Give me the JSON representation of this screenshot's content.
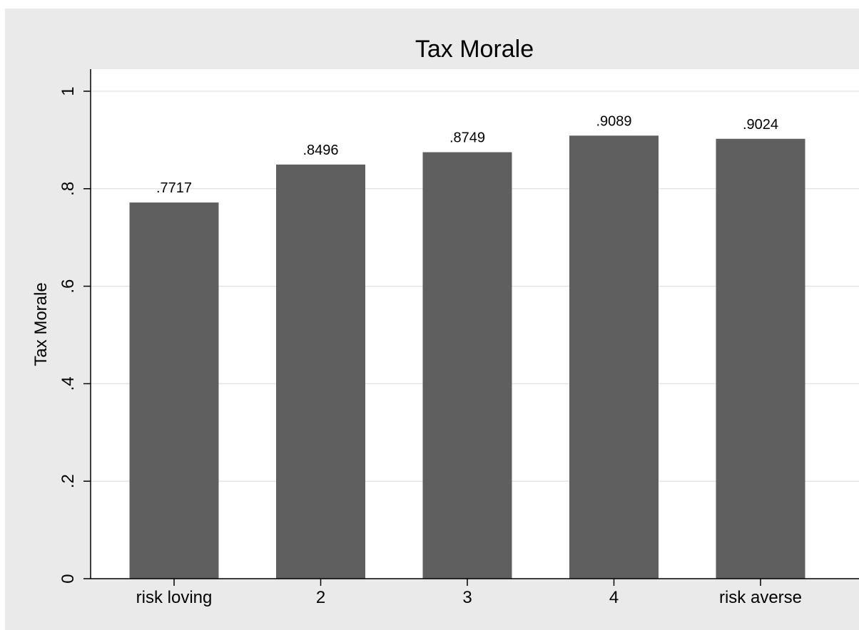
{
  "chart_data": {
    "type": "bar",
    "title": "Tax Morale",
    "xlabel": "",
    "ylabel": "Tax Morale",
    "categories": [
      "risk loving",
      "2",
      "3",
      "4",
      "risk averse"
    ],
    "values": [
      0.7717,
      0.8496,
      0.8749,
      0.9089,
      0.9024
    ],
    "value_labels": [
      ".7717",
      ".8496",
      ".8749",
      ".9089",
      ".9024"
    ],
    "ylim": [
      0,
      1.05
    ],
    "yticks": [
      0,
      0.2,
      0.4,
      0.6,
      0.8,
      1
    ],
    "ytick_labels": [
      "0",
      ".2",
      ".4",
      ".6",
      ".8",
      "1"
    ],
    "grid": true,
    "legend": "none",
    "colors": {
      "outer_background": "#eaeaea",
      "plot_background": "#ffffff",
      "bar": "#5f5f5f",
      "grid": "#e5e5e5",
      "axis": "#000000"
    }
  }
}
